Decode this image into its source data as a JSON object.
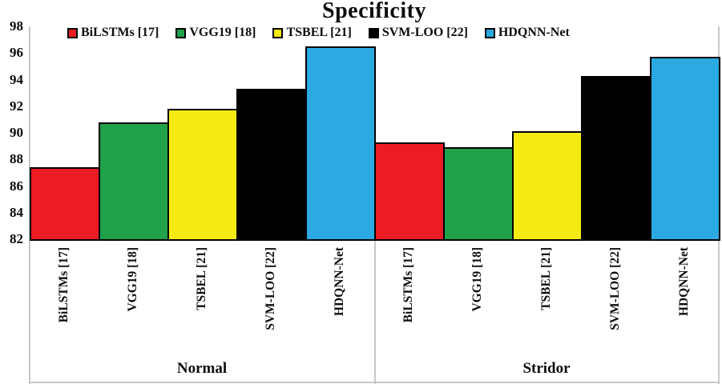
{
  "chart_data": {
    "type": "bar",
    "title": "Specificity",
    "groups": [
      "Normal",
      "Stridor"
    ],
    "categories": [
      "BiLSTMs [17]",
      "VGG19 [18]",
      "TSBEL [21]",
      "SVM-LOO [22]",
      "HDQNN-Net"
    ],
    "series": [
      {
        "name": "BiLSTMs [17]",
        "color": "#EC1C24",
        "values": [
          87.4,
          89.3
        ]
      },
      {
        "name": "VGG19 [18]",
        "color": "#1FA24A",
        "values": [
          90.8,
          88.9
        ]
      },
      {
        "name": "TSBEL [21]",
        "color": "#F5EB12",
        "values": [
          91.8,
          90.1
        ]
      },
      {
        "name": "SVM-LOO [22]",
        "color": "#000000",
        "values": [
          93.3,
          94.3
        ]
      },
      {
        "name": "HDQNN-Net",
        "color": "#2BAAE1",
        "values": [
          96.5,
          95.7
        ]
      }
    ],
    "ylim": [
      82,
      98
    ],
    "yticks": [
      82,
      84,
      86,
      88,
      90,
      92,
      94,
      96,
      98
    ],
    "xlabel": "",
    "ylabel": "",
    "grid": false,
    "legend_position": "top",
    "bar_border_color": "#000000",
    "axis_line_color": "#c9c9c9"
  }
}
